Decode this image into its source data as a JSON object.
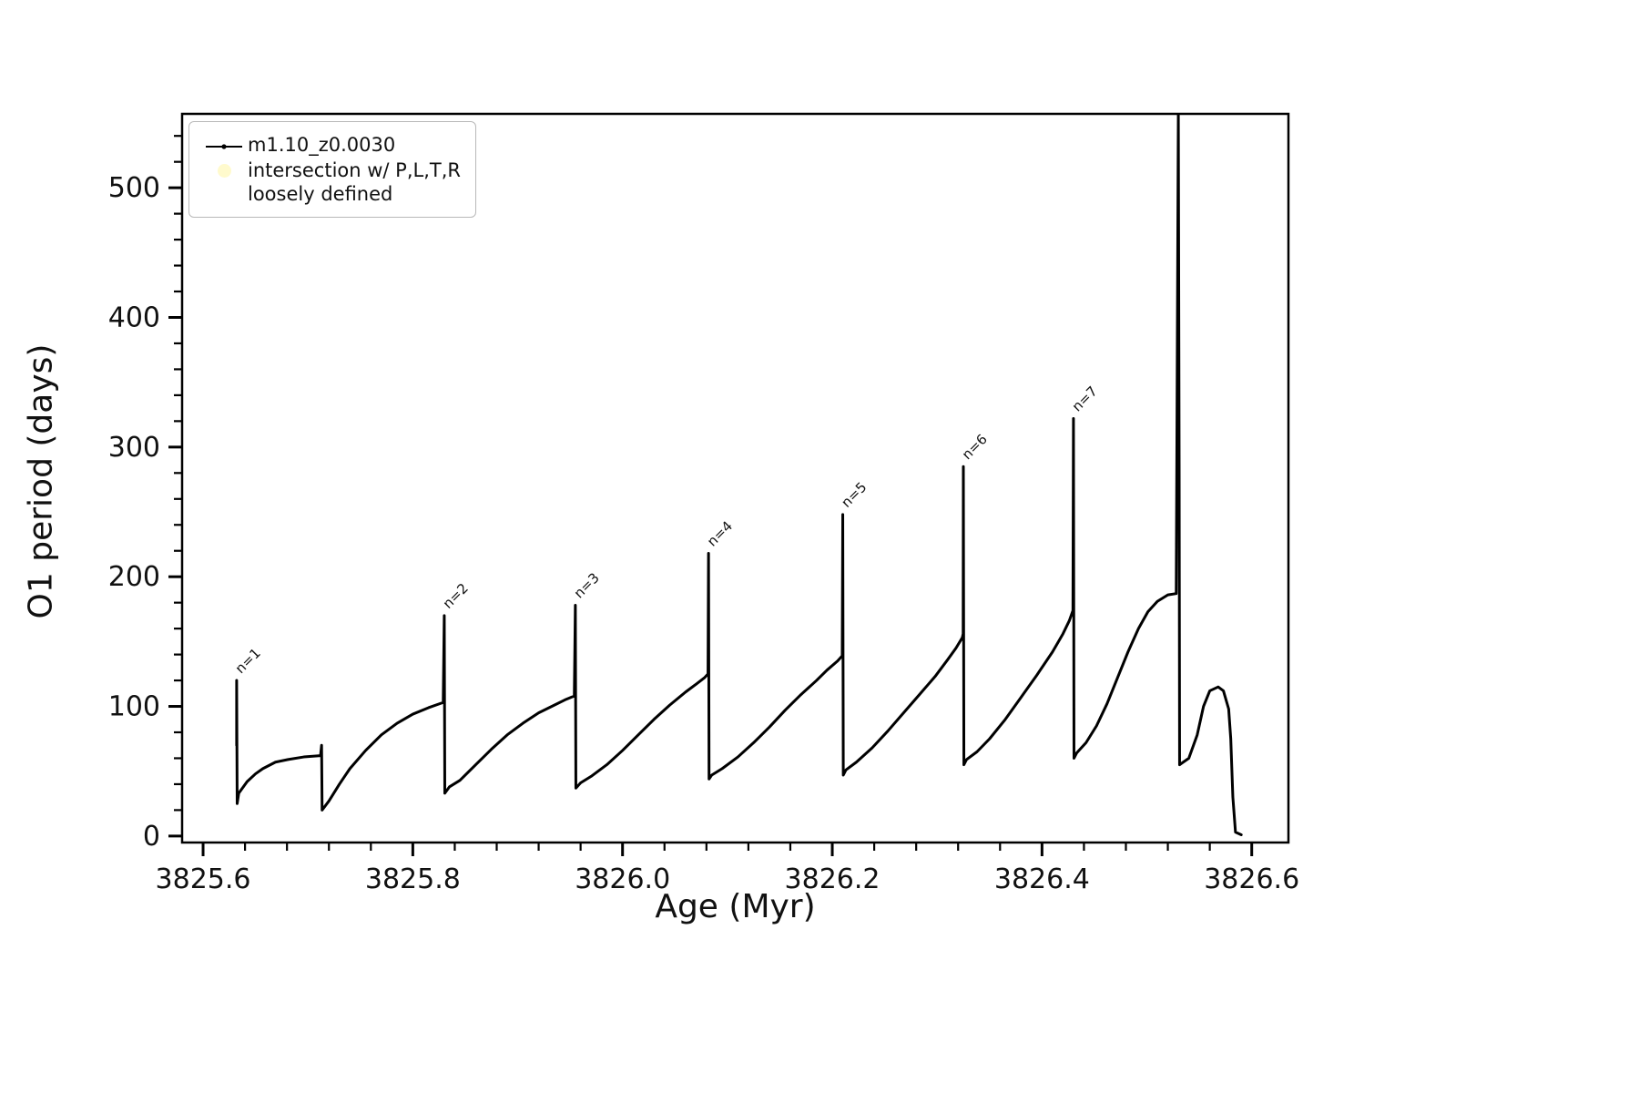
{
  "figure": {
    "background": "#ffffff",
    "line_color": "#000000",
    "intersection_marker_color": "#fffacd"
  },
  "chart_data": {
    "type": "line",
    "title": "",
    "xlabel": "Age (Myr)",
    "ylabel": "O1 period (days)",
    "xlim": [
      3825.58,
      3826.635
    ],
    "ylim": [
      -5,
      557
    ],
    "grid": false,
    "legend_position": "upper left",
    "x_major_ticks": [
      3825.6,
      3825.8,
      3826.0,
      3826.2,
      3826.4,
      3826.6
    ],
    "x_tick_labels": [
      "3825.6",
      "3825.8",
      "3826.0",
      "3826.2",
      "3826.4",
      "3826.6"
    ],
    "x_minor_step": 0.04,
    "y_major_ticks": [
      0,
      100,
      200,
      300,
      400,
      500
    ],
    "y_tick_labels": [
      "0",
      "100",
      "200",
      "300",
      "400",
      "500"
    ],
    "y_minor_step": 20,
    "legend": {
      "entries": [
        {
          "label": "m1.10_z0.0030",
          "marker": "line-dot",
          "color": "#000000"
        },
        {
          "label_line1": "intersection w/ P,L,T,R",
          "label_line2": "loosely defined",
          "marker": "circle",
          "color": "#fffacd"
        }
      ]
    },
    "annotations": [
      {
        "label": "n=1",
        "x": 3825.6335,
        "y": 122,
        "rotation": -45
      },
      {
        "label": "n=2",
        "x": 3825.8315,
        "y": 172,
        "rotation": -45
      },
      {
        "label": "n=3",
        "x": 3825.9565,
        "y": 180,
        "rotation": -45
      },
      {
        "label": "n=4",
        "x": 3826.0835,
        "y": 220,
        "rotation": -45
      },
      {
        "label": "n=5",
        "x": 3826.2115,
        "y": 250,
        "rotation": -45
      },
      {
        "label": "n=6",
        "x": 3826.3265,
        "y": 287,
        "rotation": -45
      },
      {
        "label": "n=7",
        "x": 3826.4315,
        "y": 324,
        "rotation": -45
      }
    ],
    "series": [
      {
        "name": "m1.10_z0.0030",
        "color": "#000000",
        "points": [
          [
            3825.632,
            70
          ],
          [
            3825.632,
            120
          ],
          [
            3825.6325,
            25
          ],
          [
            3825.634,
            33
          ],
          [
            3825.642,
            42
          ],
          [
            3825.65,
            48
          ],
          [
            3825.657,
            52
          ],
          [
            3825.669,
            57
          ],
          [
            3825.681,
            59
          ],
          [
            3825.696,
            61
          ],
          [
            3825.712,
            62
          ],
          [
            3825.713,
            70
          ],
          [
            3825.7135,
            20
          ],
          [
            3825.72,
            27
          ],
          [
            3825.73,
            40
          ],
          [
            3825.74,
            52
          ],
          [
            3825.755,
            66
          ],
          [
            3825.77,
            78
          ],
          [
            3825.785,
            87
          ],
          [
            3825.8,
            94
          ],
          [
            3825.815,
            99
          ],
          [
            3825.829,
            103
          ],
          [
            3825.83,
            170
          ],
          [
            3825.8305,
            33
          ],
          [
            3825.835,
            38
          ],
          [
            3825.845,
            43
          ],
          [
            3825.86,
            55
          ],
          [
            3825.875,
            67
          ],
          [
            3825.89,
            78
          ],
          [
            3825.905,
            87
          ],
          [
            3825.92,
            95
          ],
          [
            3825.935,
            101
          ],
          [
            3825.945,
            105
          ],
          [
            3825.954,
            108
          ],
          [
            3825.955,
            178
          ],
          [
            3825.9555,
            37
          ],
          [
            3825.96,
            41
          ],
          [
            3825.97,
            46
          ],
          [
            3825.985,
            55
          ],
          [
            3826.0,
            66
          ],
          [
            3826.015,
            78
          ],
          [
            3826.03,
            90
          ],
          [
            3826.045,
            101
          ],
          [
            3826.06,
            111
          ],
          [
            3826.07,
            117
          ],
          [
            3826.078,
            122
          ],
          [
            3826.0815,
            125
          ],
          [
            3826.082,
            218
          ],
          [
            3826.0825,
            44
          ],
          [
            3826.085,
            47
          ],
          [
            3826.095,
            52
          ],
          [
            3826.11,
            61
          ],
          [
            3826.125,
            72
          ],
          [
            3826.14,
            84
          ],
          [
            3826.155,
            97
          ],
          [
            3826.17,
            109
          ],
          [
            3826.185,
            120
          ],
          [
            3826.195,
            128
          ],
          [
            3826.205,
            135
          ],
          [
            3826.2095,
            139
          ],
          [
            3826.21,
            248
          ],
          [
            3826.2105,
            47
          ],
          [
            3826.213,
            51
          ],
          [
            3826.223,
            57
          ],
          [
            3826.238,
            68
          ],
          [
            3826.253,
            81
          ],
          [
            3826.268,
            95
          ],
          [
            3826.283,
            109
          ],
          [
            3826.298,
            123
          ],
          [
            3826.31,
            136
          ],
          [
            3826.318,
            145
          ],
          [
            3826.324,
            153
          ],
          [
            3826.3248,
            156
          ],
          [
            3826.325,
            285
          ],
          [
            3826.3255,
            55
          ],
          [
            3826.328,
            59
          ],
          [
            3826.338,
            65
          ],
          [
            3826.35,
            75
          ],
          [
            3826.365,
            90
          ],
          [
            3826.38,
            107
          ],
          [
            3826.395,
            124
          ],
          [
            3826.41,
            142
          ],
          [
            3826.42,
            156
          ],
          [
            3826.426,
            166
          ],
          [
            3826.4295,
            174
          ],
          [
            3826.43,
            322
          ],
          [
            3826.4305,
            60
          ],
          [
            3826.433,
            64
          ],
          [
            3826.442,
            72
          ],
          [
            3826.452,
            85
          ],
          [
            3826.462,
            102
          ],
          [
            3826.472,
            122
          ],
          [
            3826.482,
            142
          ],
          [
            3826.492,
            160
          ],
          [
            3826.501,
            173
          ],
          [
            3826.51,
            181
          ],
          [
            3826.52,
            186
          ],
          [
            3826.528,
            187
          ],
          [
            3826.53,
            556
          ],
          [
            3826.5308,
            282
          ],
          [
            3826.5312,
            55
          ],
          [
            3826.533,
            56
          ],
          [
            3826.54,
            60
          ],
          [
            3826.548,
            78
          ],
          [
            3826.554,
            100
          ],
          [
            3826.56,
            112
          ],
          [
            3826.568,
            115
          ],
          [
            3826.573,
            112
          ],
          [
            3826.578,
            98
          ],
          [
            3826.58,
            75
          ],
          [
            3826.582,
            30
          ],
          [
            3826.5845,
            3
          ],
          [
            3826.59,
            1
          ]
        ]
      }
    ]
  }
}
